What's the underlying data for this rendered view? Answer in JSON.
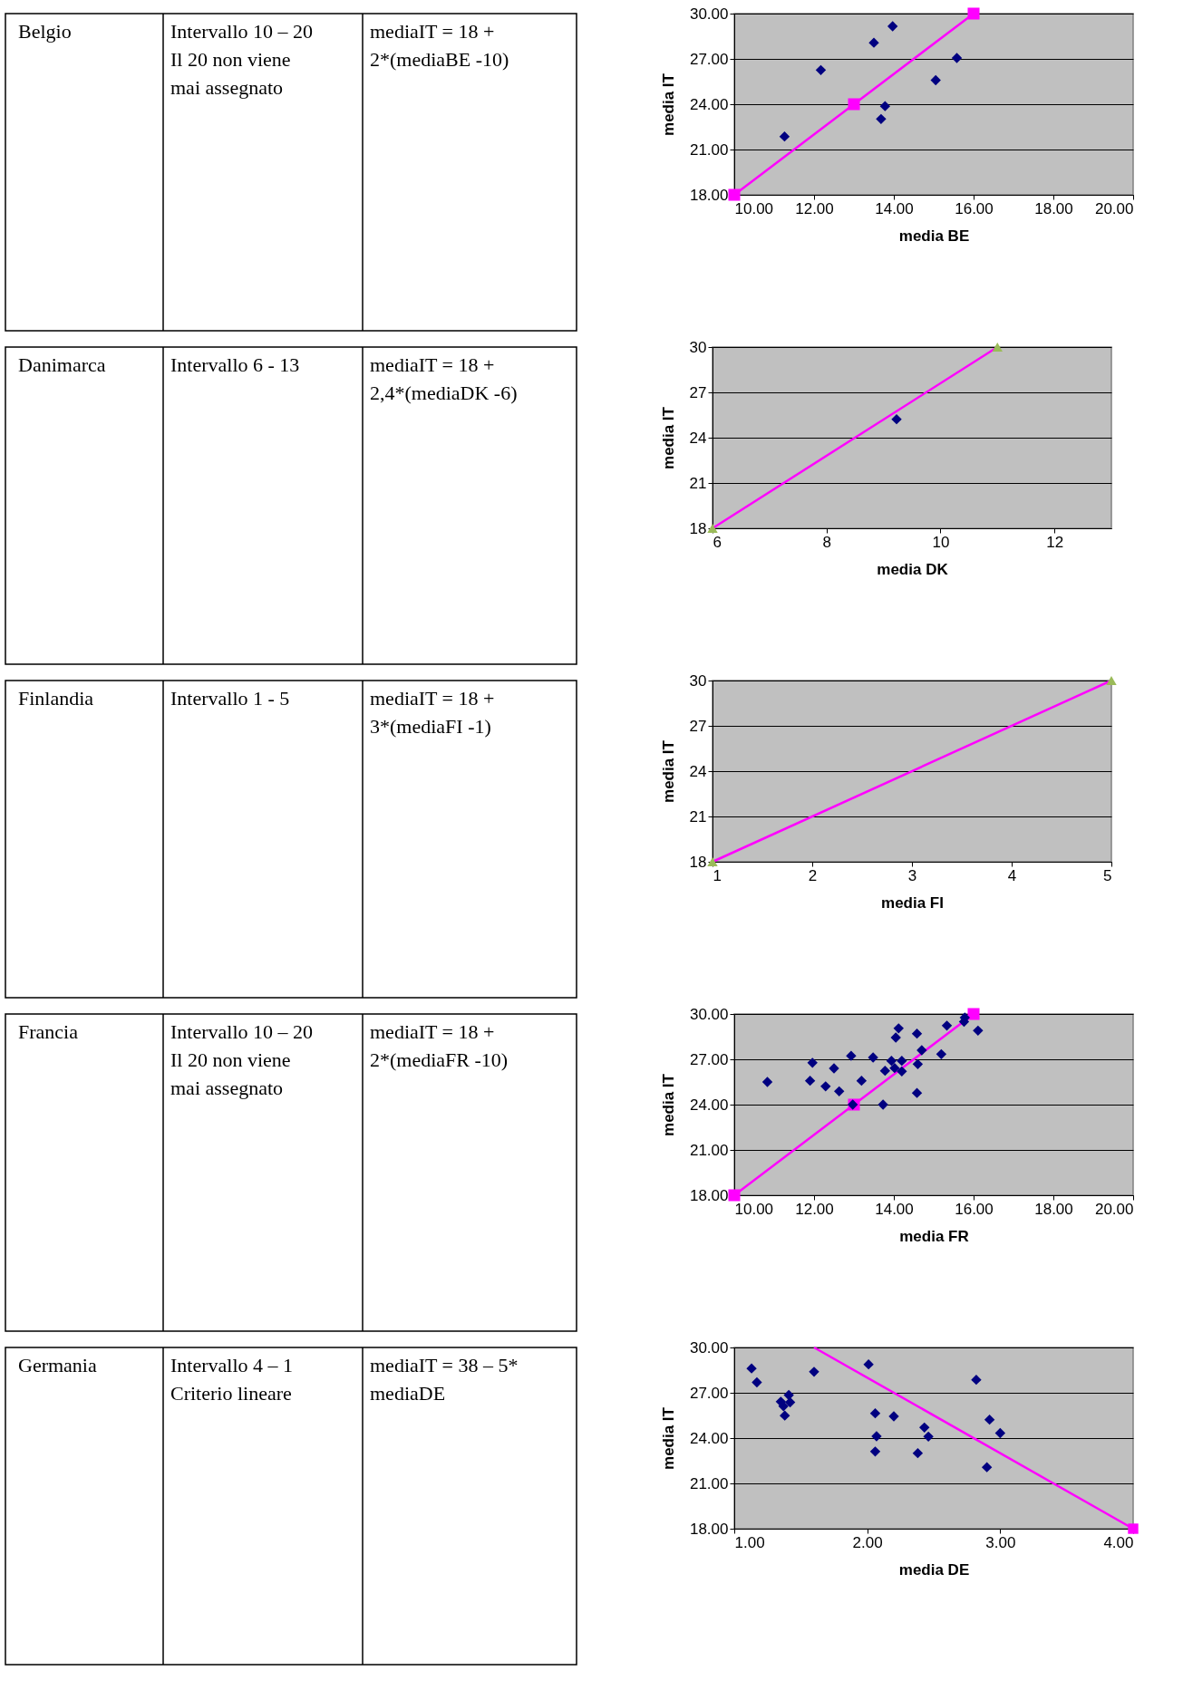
{
  "chart_data": [
    {
      "type": "other",
      "annotations": [
        "Belgio",
        "Intervallo 10 – 20\nIl 20 non viene\nmai assegnato",
        "mediaIT = 18 +\n2*(mediaBE -10)"
      ]
    },
    {
      "type": "scatter",
      "xlabel": "media BE",
      "ylabel": "media IT",
      "xlim": [
        10,
        20
      ],
      "ylim": [
        18,
        30
      ],
      "grid": "y",
      "xticks": [
        {
          "value": 10,
          "label": "10.00"
        },
        {
          "value": 12,
          "label": "12.00"
        },
        {
          "value": 14,
          "label": "14.00"
        },
        {
          "value": 16,
          "label": "16.00"
        },
        {
          "value": 18,
          "label": "18.00"
        },
        {
          "value": 20,
          "label": "20.00"
        }
      ],
      "yticks": [
        {
          "value": 18,
          "label": "18.00"
        },
        {
          "value": 21,
          "label": "21.00"
        },
        {
          "value": 24,
          "label": "24.00"
        },
        {
          "value": 27,
          "label": "27.00"
        },
        {
          "value": 30,
          "label": "30.00"
        }
      ],
      "series": [
        {
          "type": "scatter",
          "marker": "diamond",
          "color": "#000080",
          "x": [
            11.26,
            12.17,
            13.5,
            13.97,
            13.78,
            13.68,
            15.05,
            15.58
          ],
          "values": [
            21.86,
            26.26,
            28.07,
            29.16,
            23.87,
            23.02,
            25.59,
            27.06
          ]
        },
        {
          "type": "line",
          "marker": "square",
          "color": "#ff00ff",
          "x": [
            10,
            13,
            16
          ],
          "values": [
            18,
            24,
            30
          ]
        }
      ]
    },
    {
      "type": "other",
      "annotations": [
        "Danimarca",
        "Intervallo 6 - 13",
        "mediaIT = 18 +\n2,4*(mediaDK -6)"
      ]
    },
    {
      "type": "scatter",
      "xlabel": "media DK",
      "ylabel": "media IT",
      "xlim": [
        6,
        13
      ],
      "ylim": [
        18,
        30
      ],
      "grid": "y",
      "xticks": [
        6,
        8,
        10,
        12
      ],
      "yticks": [
        18,
        21,
        24,
        27,
        30
      ],
      "series": [
        {
          "type": "scatter",
          "marker": "diamond",
          "color": "#000080",
          "x": [
            9.23
          ],
          "values": [
            25.22
          ]
        },
        {
          "type": "line",
          "marker": "none",
          "color": "#ff00ff",
          "x": [
            6,
            11
          ],
          "values": [
            18,
            30
          ]
        },
        {
          "type": "scatter",
          "marker": "triangle",
          "color": "#9bbb59",
          "x": [
            6,
            11
          ],
          "values": [
            18,
            30
          ]
        }
      ]
    },
    {
      "type": "other",
      "annotations": [
        "Finlandia",
        "Intervallo 1 - 5",
        "mediaIT = 18 +\n3*(mediaFI -1)"
      ]
    },
    {
      "type": "scatter",
      "xlabel": "media FI",
      "ylabel": "media IT",
      "xlim": [
        1,
        5
      ],
      "ylim": [
        18,
        30
      ],
      "grid": "y",
      "xticks": [
        1,
        2,
        3,
        4,
        5
      ],
      "yticks": [
        18,
        21,
        24,
        27,
        30
      ],
      "series": [
        {
          "type": "line",
          "marker": "none",
          "color": "#ff00ff",
          "x": [
            1,
            5
          ],
          "values": [
            18,
            30
          ]
        },
        {
          "type": "scatter",
          "marker": "triangle",
          "color": "#9bbb59",
          "x": [
            1,
            5
          ],
          "values": [
            18,
            30
          ]
        }
      ]
    },
    {
      "type": "other",
      "annotations": [
        "Francia",
        "Intervallo 10 – 20\nIl 20 non viene\nmai assegnato",
        "mediaIT = 18 +\n2*(mediaFR -10)"
      ]
    },
    {
      "type": "scatter",
      "xlabel": "media FR",
      "ylabel": "media IT",
      "xlim": [
        10,
        20
      ],
      "ylim": [
        18,
        30
      ],
      "grid": "y",
      "xticks": [
        {
          "value": 10,
          "label": "10.00"
        },
        {
          "value": 12,
          "label": "12.00"
        },
        {
          "value": 14,
          "label": "14.00"
        },
        {
          "value": 16,
          "label": "16.00"
        },
        {
          "value": 18,
          "label": "18.00"
        },
        {
          "value": 20,
          "label": "20.00"
        }
      ],
      "yticks": [
        {
          "value": 18,
          "label": "18.00"
        },
        {
          "value": 21,
          "label": "21.00"
        },
        {
          "value": 24,
          "label": "24.00"
        },
        {
          "value": 27,
          "label": "27.00"
        },
        {
          "value": 30,
          "label": "30.00"
        }
      ],
      "series": [
        {
          "type": "line",
          "marker": "square",
          "color": "#ff00ff",
          "x": [
            10,
            13,
            16
          ],
          "values": [
            18,
            24,
            30
          ]
        },
        {
          "type": "scatter",
          "marker": "diamond",
          "color": "#000080",
          "x": [
            10.83,
            11.9,
            11.96,
            12.29,
            12.5,
            12.63,
            12.93,
            12.97,
            13.19,
            13.48,
            13.73,
            13.78,
            13.94,
            14.02,
            14.05,
            14.12,
            14.2,
            14.2,
            14.58,
            14.6,
            14.58,
            14.7,
            15.19,
            15.33,
            15.76,
            15.78,
            16.11
          ],
          "values": [
            25.5,
            25.58,
            26.77,
            25.21,
            26.4,
            24.88,
            27.23,
            24.0,
            25.58,
            27.12,
            24.0,
            26.24,
            26.9,
            26.42,
            28.44,
            29.05,
            26.9,
            26.2,
            28.7,
            26.68,
            24.77,
            27.6,
            27.34,
            29.23,
            29.49,
            29.76,
            28.9
          ]
        }
      ]
    },
    {
      "type": "other",
      "annotations": [
        "Germania",
        "Intervallo 4 – 1\nCriterio lineare",
        "mediaIT = 38 – 5*\nmediaDE"
      ]
    },
    {
      "type": "scatter",
      "xlabel": "media DE",
      "ylabel": "media IT",
      "xlim": [
        1,
        4
      ],
      "ylim": [
        18,
        30
      ],
      "grid": "y",
      "xticks": [
        {
          "value": 1,
          "label": "1.00"
        },
        {
          "value": 2,
          "label": "2.00"
        },
        {
          "value": 3,
          "label": "3.00"
        },
        {
          "value": 4,
          "label": "4.00"
        }
      ],
      "yticks": [
        {
          "value": 18,
          "label": "18.00"
        },
        {
          "value": 21,
          "label": "21.00"
        },
        {
          "value": 24,
          "label": "24.00"
        },
        {
          "value": 27,
          "label": "27.00"
        },
        {
          "value": 30,
          "label": "30.00"
        }
      ],
      "series": [
        {
          "type": "scatter",
          "marker": "diamond",
          "color": "#000080",
          "x": [
            1.13,
            1.17,
            1.35,
            1.37,
            1.38,
            1.41,
            1.42,
            1.6,
            2.01,
            2.06,
            2.07,
            2.06,
            2.2,
            2.38,
            2.43,
            2.46,
            2.82,
            2.92,
            2.9,
            3.0
          ],
          "values": [
            28.61,
            27.69,
            26.41,
            26.11,
            25.49,
            26.85,
            26.37,
            28.39,
            28.88,
            25.64,
            24.12,
            23.11,
            25.44,
            23.0,
            24.7,
            24.1,
            27.86,
            25.22,
            22.07,
            24.33
          ]
        },
        {
          "type": "line",
          "marker": "none",
          "color": "#ff00ff",
          "x": [
            1.6,
            4
          ],
          "values": [
            30,
            18
          ]
        },
        {
          "type": "scatter",
          "marker": "square",
          "color": "#ff00ff",
          "x": [
            4
          ],
          "values": [
            18
          ]
        }
      ]
    }
  ]
}
